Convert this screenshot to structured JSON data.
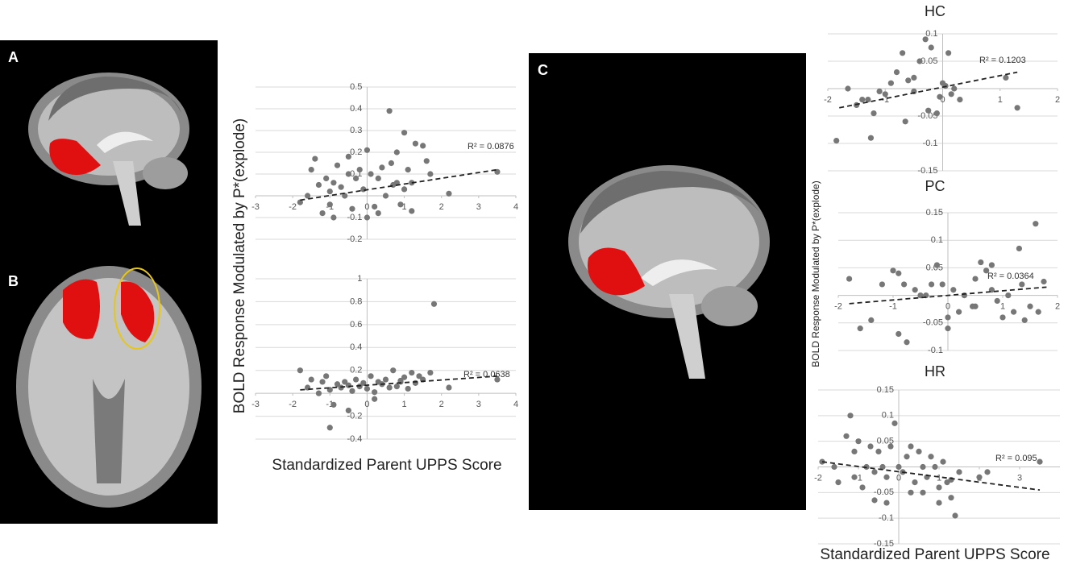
{
  "panels": {
    "labels": [
      "A",
      "B",
      "C"
    ]
  },
  "axis_labels": {
    "y": "BOLD Response Modulated by P*(explode)",
    "x": "Standardized Parent UPPS Score"
  },
  "chart_data": [
    {
      "type": "scatter",
      "color": "#777777",
      "grid": true,
      "x": [
        -1.8,
        -1.6,
        -1.5,
        -1.3,
        -1.2,
        -1.1,
        -1.0,
        -0.9,
        -0.8,
        -0.7,
        -0.6,
        -0.5,
        -0.4,
        -0.3,
        -0.2,
        -0.1,
        0,
        0.1,
        0.2,
        0.3,
        0.4,
        0.5,
        0.6,
        0.7,
        0.8,
        0.9,
        1.0,
        1.1,
        1.2,
        1.3,
        1.5,
        1.7,
        2.2,
        3.5,
        0.65,
        -1.4,
        -0.9,
        0.0,
        0.3,
        1.0,
        -0.5,
        0.8,
        1.2,
        1.6,
        -1.0
      ],
      "values": [
        -0.03,
        0.0,
        0.12,
        0.05,
        -0.08,
        0.08,
        0.02,
        -0.1,
        0.14,
        0.04,
        0.0,
        0.1,
        -0.06,
        0.08,
        0.12,
        0.03,
        0.21,
        0.1,
        -0.05,
        0.08,
        0.13,
        0.0,
        0.39,
        0.05,
        0.2,
        -0.04,
        0.29,
        0.12,
        0.06,
        0.24,
        0.23,
        0.1,
        0.01,
        0.11,
        0.15,
        0.17,
        0.06,
        -0.1,
        -0.08,
        0.03,
        0.18,
        0.06,
        -0.07,
        0.16,
        -0.04
      ],
      "trendline": {
        "x": [
          -1.8,
          3.5
        ],
        "y": [
          -0.02,
          0.12
        ]
      },
      "annotation": "R² = 0.0876",
      "xlim": [
        -3,
        4
      ],
      "xticks": [
        -3,
        -2,
        -1,
        0,
        1,
        2,
        3,
        4
      ],
      "ylim": [
        -0.2,
        0.5
      ],
      "yticks": [
        0.5,
        0.4,
        0.3,
        0.2,
        0.1,
        -0.1,
        -0.2
      ]
    },
    {
      "type": "scatter",
      "color": "#777777",
      "grid": true,
      "x": [
        -1.8,
        -1.6,
        -1.5,
        -1.3,
        -1.2,
        -1.1,
        -1.0,
        -0.9,
        -0.8,
        -0.7,
        -0.6,
        -0.5,
        -0.4,
        -0.3,
        -0.2,
        -0.1,
        0,
        0.1,
        0.2,
        0.3,
        0.4,
        0.5,
        0.6,
        0.7,
        0.8,
        0.9,
        1.0,
        1.1,
        1.2,
        1.3,
        1.5,
        1.7,
        1.8,
        2.2,
        3.5,
        -1.0,
        -0.5,
        0.2,
        0.9,
        1.4
      ],
      "values": [
        0.2,
        0.05,
        0.12,
        0.0,
        0.1,
        0.15,
        0.03,
        -0.1,
        0.08,
        0.05,
        0.1,
        -0.15,
        0.02,
        0.12,
        0.06,
        0.09,
        0.04,
        0.15,
        0.01,
        0.1,
        0.08,
        0.12,
        0.05,
        0.2,
        0.06,
        0.1,
        0.14,
        0.04,
        0.18,
        0.09,
        0.12,
        0.18,
        0.78,
        0.05,
        0.12,
        -0.3,
        0.07,
        -0.05,
        0.11,
        0.15
      ],
      "trendline": {
        "x": [
          -1.8,
          3.5
        ],
        "y": [
          0.03,
          0.15
        ]
      },
      "annotation": "R² = 0.0638",
      "xlim": [
        -3,
        4
      ],
      "xticks": [
        -3,
        -2,
        -1,
        0,
        1,
        2,
        3,
        4
      ],
      "ylim": [
        -0.4,
        1
      ],
      "yticks": [
        1,
        0.8,
        0.6,
        0.4,
        0.2,
        -0.2,
        -0.4
      ]
    },
    {
      "type": "scatter",
      "title": "HC",
      "color": "#777777",
      "grid": true,
      "x": [
        -1.85,
        -1.65,
        -1.5,
        -1.4,
        -1.3,
        -1.2,
        -1.25,
        -1.0,
        -0.9,
        -0.8,
        -0.7,
        -0.65,
        -0.6,
        -0.5,
        -0.4,
        -0.3,
        -0.2,
        -0.25,
        -0.1,
        0.0,
        0.05,
        -0.05,
        0.1,
        0.15,
        0.3,
        0.2,
        1.1,
        1.3,
        -0.5,
        -1.1
      ],
      "values": [
        -0.095,
        0.0,
        -0.03,
        -0.02,
        -0.02,
        -0.045,
        -0.09,
        -0.01,
        0.01,
        0.03,
        0.065,
        -0.06,
        0.015,
        0.02,
        0.05,
        0.09,
        0.075,
        -0.04,
        -0.045,
        0.01,
        0.005,
        -0.015,
        0.065,
        -0.01,
        -0.02,
        0.0,
        0.02,
        -0.035,
        -0.005,
        -0.005
      ],
      "trendline": {
        "x": [
          -1.8,
          1.3
        ],
        "y": [
          -0.035,
          0.03
        ]
      },
      "annotation": "R² = 0.1203",
      "xlim": [
        -2,
        2
      ],
      "xticks": [
        -2,
        -1,
        0,
        1,
        2
      ],
      "ylim": [
        -0.15,
        0.1
      ],
      "yticks": [
        0.1,
        0.05,
        -0.05,
        -0.1,
        -0.15
      ]
    },
    {
      "type": "scatter",
      "title": "PC",
      "color": "#777777",
      "grid": true,
      "x": [
        -1.8,
        -1.6,
        -1.4,
        -1.2,
        -1.0,
        -0.9,
        -0.8,
        -0.9,
        -0.75,
        -0.6,
        -0.5,
        -0.3,
        -0.2,
        -0.1,
        0.0,
        0.0,
        0.1,
        0.2,
        0.3,
        0.5,
        0.5,
        0.6,
        0.7,
        0.8,
        0.8,
        0.9,
        1.0,
        1.1,
        1.2,
        1.3,
        1.35,
        1.4,
        1.5,
        1.6,
        1.65,
        1.75,
        -0.4,
        0.45
      ],
      "values": [
        0.03,
        -0.06,
        -0.045,
        0.02,
        0.045,
        0.04,
        0.02,
        -0.07,
        -0.085,
        0.01,
        0.0,
        0.02,
        0.055,
        0.02,
        -0.04,
        -0.06,
        0.01,
        -0.03,
        0.0,
        0.03,
        -0.02,
        0.06,
        0.045,
        0.055,
        0.01,
        -0.01,
        -0.04,
        0.0,
        -0.03,
        0.085,
        0.02,
        -0.045,
        -0.02,
        0.13,
        -0.03,
        0.025,
        0.0,
        -0.02
      ],
      "trendline": {
        "x": [
          -1.8,
          1.8
        ],
        "y": [
          -0.015,
          0.015
        ]
      },
      "annotation": "R² = 0.0364",
      "xlim": [
        -2,
        2
      ],
      "xticks": [
        -2,
        -1,
        0,
        1,
        2
      ],
      "ylim": [
        -0.1,
        0.15
      ],
      "yticks": [
        0.15,
        0.1,
        0.05,
        -0.05,
        -0.1
      ]
    },
    {
      "type": "scatter",
      "title": "HR",
      "color": "#777777",
      "grid": true,
      "x": [
        -1.9,
        -1.3,
        -1.2,
        -1.1,
        -1.0,
        -1.1,
        -0.9,
        -0.8,
        -0.7,
        -0.6,
        -0.5,
        -0.4,
        -0.3,
        -0.2,
        -0.1,
        0.0,
        0.1,
        0.2,
        0.3,
        0.4,
        0.5,
        0.6,
        0.7,
        0.8,
        0.9,
        1.0,
        1.0,
        1.1,
        1.2,
        1.3,
        1.4,
        1.5,
        2.0,
        2.2,
        3.5,
        -1.5,
        -0.6,
        -0.3,
        0.3,
        0.6,
        1.3,
        -1.6
      ],
      "values": [
        0.01,
        0.06,
        0.1,
        0.03,
        0.05,
        -0.02,
        -0.04,
        0.0,
        0.04,
        -0.01,
        0.03,
        0.0,
        -0.02,
        0.04,
        0.085,
        0.0,
        -0.01,
        0.02,
        0.04,
        -0.03,
        0.03,
        -0.05,
        -0.02,
        0.02,
        0.0,
        -0.07,
        -0.04,
        0.01,
        -0.03,
        -0.06,
        -0.095,
        -0.01,
        -0.02,
        -0.01,
        0.01,
        -0.03,
        -0.065,
        -0.07,
        -0.05,
        0.0,
        -0.025,
        0.0
      ],
      "trendline": {
        "x": [
          -1.9,
          3.5
        ],
        "y": [
          0.01,
          -0.045
        ]
      },
      "annotation": "R² = 0.095",
      "xlim": [
        -2,
        4
      ],
      "xticks": [
        -2,
        -1,
        0,
        1,
        2,
        3
      ],
      "ylim": [
        -0.15,
        0.15
      ],
      "yticks": [
        0.15,
        0.1,
        0.05,
        -0.05,
        -0.1,
        -0.15
      ]
    }
  ]
}
